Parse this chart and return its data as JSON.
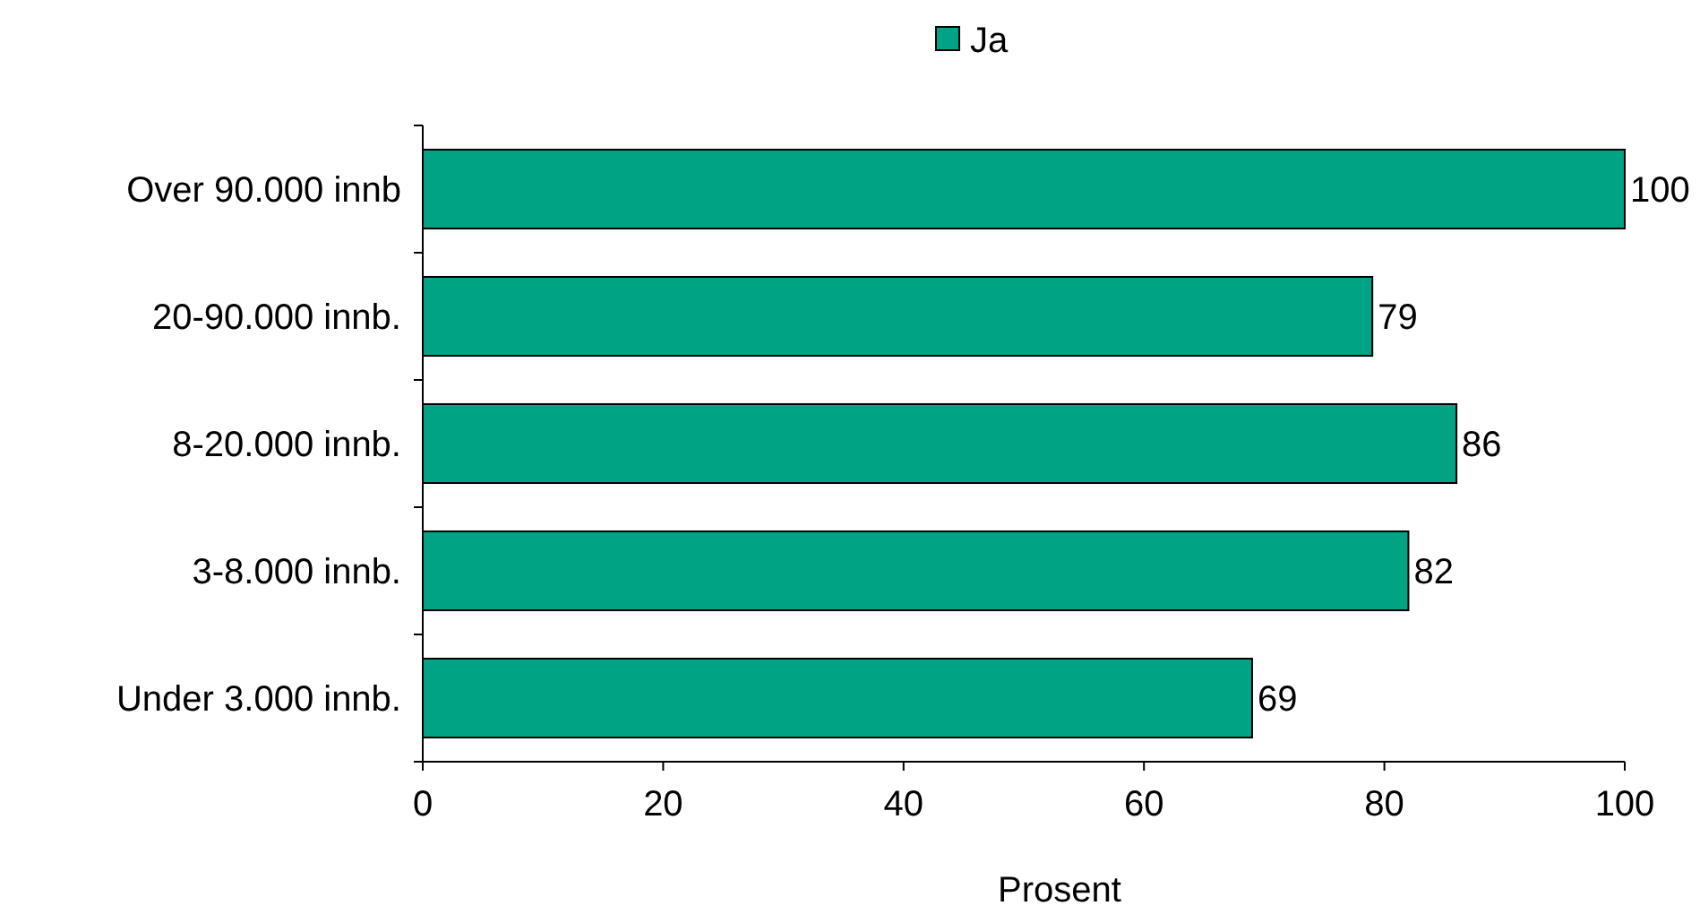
{
  "chart_data": {
    "type": "bar",
    "orientation": "horizontal",
    "categories": [
      "Over 90.000 innb",
      "20-90.000 innb.",
      "8-20.000 innb.",
      "3-8.000 innb.",
      "Under 3.000 innb."
    ],
    "series": [
      {
        "name": "Ja",
        "color": "#00a383",
        "values": [
          100,
          79,
          86,
          82,
          69
        ]
      }
    ],
    "xlim": [
      0,
      100
    ],
    "xticks": [
      0,
      20,
      40,
      60,
      80,
      100
    ],
    "xlabel": "Prosent",
    "data_labels": true,
    "legend": "top",
    "grid": false
  }
}
